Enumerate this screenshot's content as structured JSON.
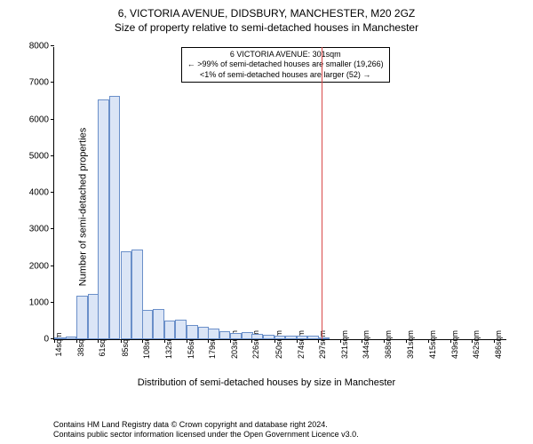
{
  "chart": {
    "type": "histogram",
    "title_line1": "6, VICTORIA AVENUE, DIDSBURY, MANCHESTER, M20 2GZ",
    "title_line2": "Size of property relative to semi-detached houses in Manchester",
    "ylabel": "Number of semi-detached properties",
    "xlabel": "Distribution of semi-detached houses by size in Manchester",
    "title_fontsize": 12,
    "label_fontsize": 11,
    "tick_fontsize": 10,
    "xtick_fontsize": 9,
    "background_color": "#ffffff",
    "axis_color": "#000000",
    "bar_fill": "#dbe5f6",
    "bar_stroke": "#6a8fc9",
    "marker_color": "#d94a4a",
    "ylim": [
      0,
      8000
    ],
    "ytick_step": 1000,
    "yticks": [
      0,
      1000,
      2000,
      3000,
      4000,
      5000,
      6000,
      7000,
      8000
    ],
    "xlim": [
      14,
      500
    ],
    "xticks": [
      14,
      38,
      61,
      85,
      108,
      132,
      156,
      179,
      203,
      226,
      250,
      274,
      297,
      321,
      344,
      368,
      391,
      415,
      439,
      462,
      486
    ],
    "xtick_suffix": "sqm",
    "bin_width": 12,
    "bins": [
      {
        "x": 14,
        "count": 50
      },
      {
        "x": 26,
        "count": 70
      },
      {
        "x": 38,
        "count": 1200
      },
      {
        "x": 50,
        "count": 1250
      },
      {
        "x": 61,
        "count": 6550
      },
      {
        "x": 73,
        "count": 6650
      },
      {
        "x": 85,
        "count": 2400
      },
      {
        "x": 97,
        "count": 2450
      },
      {
        "x": 108,
        "count": 800
      },
      {
        "x": 120,
        "count": 820
      },
      {
        "x": 132,
        "count": 520
      },
      {
        "x": 144,
        "count": 530
      },
      {
        "x": 156,
        "count": 400
      },
      {
        "x": 168,
        "count": 350
      },
      {
        "x": 179,
        "count": 300
      },
      {
        "x": 191,
        "count": 220
      },
      {
        "x": 203,
        "count": 180
      },
      {
        "x": 215,
        "count": 200
      },
      {
        "x": 226,
        "count": 150
      },
      {
        "x": 238,
        "count": 130
      },
      {
        "x": 250,
        "count": 100
      },
      {
        "x": 262,
        "count": 90
      },
      {
        "x": 274,
        "count": 110
      },
      {
        "x": 286,
        "count": 100
      },
      {
        "x": 297,
        "count": 50
      }
    ],
    "marker_x": 301,
    "annotation": {
      "line1": "6 VICTORIA AVENUE: 301sqm",
      "line2": "← >99% of semi-detached houses are smaller (19,266)",
      "line3": "<1% of semi-detached houses are larger (52) →",
      "border_color": "#000000",
      "font_size": 9
    },
    "footer_line1": "Contains HM Land Registry data © Crown copyright and database right 2024.",
    "footer_line2": "Contains public sector information licensed under the Open Government Licence v3.0."
  }
}
